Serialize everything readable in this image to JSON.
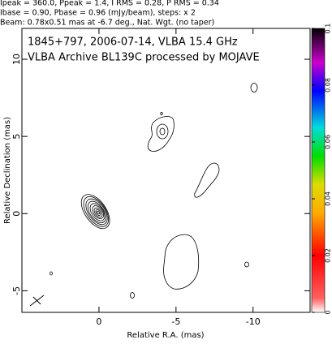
{
  "chart_data": {
    "type": "contour",
    "header": [
      "Ipeak = 360.0, Ppeak = 1.4, I RMS = 0.28, P RMS = 0.34",
      "Ibase = 0.90, Pbase = 0.96 (mJy/beam), steps: x 2",
      "Beam: 0.78x0.51 mas at -6.7 deg., Nat. Wgt. (no taper)"
    ],
    "title": [
      "1845+797, 2006-07-14, VLBA 15.4 GHz",
      "VLBA Archive BL139C processed by MOJAVE"
    ],
    "xlabel": "Relative R.A. (mas)",
    "ylabel": "Relative Declination (mas)",
    "xlim": [
      5,
      -13.7
    ],
    "xticks": [
      0,
      -5,
      -10
    ],
    "ylim": [
      -6.4,
      12
    ],
    "yticks": [
      -5,
      0,
      5,
      10
    ],
    "colorbar": {
      "lim": [
        0,
        0.1
      ],
      "ticks": [
        0,
        0.02,
        0.04,
        0.06,
        0.08,
        0.1
      ]
    }
  }
}
